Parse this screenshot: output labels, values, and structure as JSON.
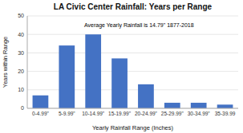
{
  "chart_data": {
    "type": "bar",
    "title": "LA Civic Center Rainfall: Years per Range",
    "xlabel": "Yearly Rainfall Range (Inches)",
    "ylabel": "Years within Range",
    "annotation": "Average Yearly Rainfall is 14.79\"  1877-2018",
    "categories": [
      "0-4.99\"",
      "5-9.99\"",
      "10-14.99\"",
      "15-19.99\"",
      "20-24.99\"",
      "25-29.99\"",
      "30-34.99\"",
      "35-39.99"
    ],
    "values": [
      7,
      34,
      40,
      27,
      13,
      3,
      3,
      2
    ],
    "color": "#4472c4",
    "ylim": [
      0,
      50
    ],
    "yticks": [
      0,
      10,
      20,
      30,
      40,
      50
    ],
    "grid": true
  }
}
